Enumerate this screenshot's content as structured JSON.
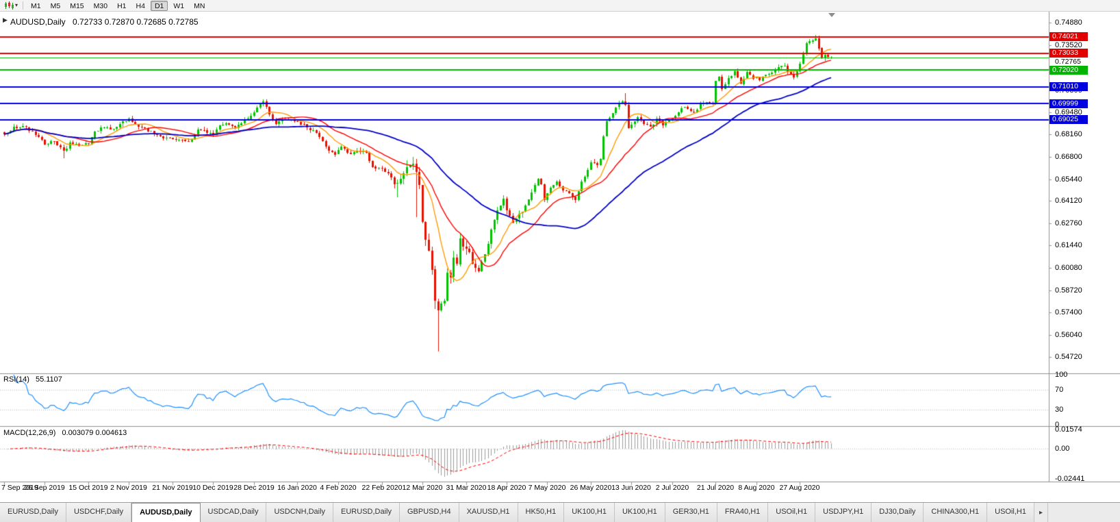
{
  "toolbar": {
    "timeframes": [
      "M1",
      "M5",
      "M15",
      "M30",
      "H1",
      "H4",
      "D1",
      "W1",
      "MN"
    ],
    "active_timeframe": "D1",
    "dropdown_caret": "▾"
  },
  "chart_header": {
    "symbol": "AUDUSD,Daily",
    "ohlc": "0.72733 0.72870 0.72685 0.72785",
    "one_click_glyph": "▶"
  },
  "chart_data": {
    "type": "candlestick",
    "symbol": "AUDUSD",
    "timeframe": "Daily",
    "current_ohlc": {
      "open": 0.72733,
      "high": 0.7287,
      "low": 0.72685,
      "close": 0.72785
    },
    "num_candles": 266,
    "candle_up_color": "#00C400",
    "candle_down_color": "#E81000",
    "close_anchors": [
      [
        0,
        0.6815
      ],
      [
        3,
        0.6855
      ],
      [
        6,
        0.6865
      ],
      [
        9,
        0.683
      ],
      [
        13,
        0.676
      ],
      [
        16,
        0.677
      ],
      [
        19,
        0.671
      ],
      [
        21,
        0.676
      ],
      [
        24,
        0.675
      ],
      [
        27,
        0.6755
      ],
      [
        29,
        0.683
      ],
      [
        32,
        0.686
      ],
      [
        35,
        0.6845
      ],
      [
        38,
        0.6885
      ],
      [
        40,
        0.691
      ],
      [
        43,
        0.686
      ],
      [
        46,
        0.684
      ],
      [
        49,
        0.681
      ],
      [
        52,
        0.679
      ],
      [
        56,
        0.6785
      ],
      [
        58,
        0.677
      ],
      [
        60,
        0.678
      ],
      [
        62,
        0.684
      ],
      [
        64,
        0.6835
      ],
      [
        67,
        0.681
      ],
      [
        69,
        0.6865
      ],
      [
        71,
        0.688
      ],
      [
        74,
        0.685
      ],
      [
        77,
        0.69
      ],
      [
        80,
        0.6945
      ],
      [
        82,
        0.7
      ],
      [
        83,
        0.7015
      ],
      [
        85,
        0.6935
      ],
      [
        87,
        0.6875
      ],
      [
        89,
        0.6905
      ],
      [
        92,
        0.69
      ],
      [
        94,
        0.689
      ],
      [
        96,
        0.687
      ],
      [
        98,
        0.6845
      ],
      [
        100,
        0.683
      ],
      [
        102,
        0.677
      ],
      [
        104,
        0.672
      ],
      [
        106,
        0.6695
      ],
      [
        108,
        0.674
      ],
      [
        111,
        0.669
      ],
      [
        113,
        0.672
      ],
      [
        116,
        0.67
      ],
      [
        118,
        0.662
      ],
      [
        121,
        0.66
      ],
      [
        123,
        0.658
      ],
      [
        125,
        0.653
      ],
      [
        126,
        0.6515
      ],
      [
        128,
        0.659
      ],
      [
        130,
        0.6635
      ],
      [
        131,
        0.664
      ],
      [
        132,
        0.658
      ],
      [
        133,
        0.65
      ],
      [
        134,
        0.628
      ],
      [
        135,
        0.6185
      ],
      [
        136,
        0.6115
      ],
      [
        137,
        0.599
      ],
      [
        138,
        0.5795
      ],
      [
        139,
        0.5745
      ],
      [
        140,
        0.58
      ],
      [
        141,
        0.5825
      ],
      [
        142,
        0.5965
      ],
      [
        143,
        0.5955
      ],
      [
        144,
        0.6065
      ],
      [
        145,
        0.6025
      ],
      [
        146,
        0.617
      ],
      [
        147,
        0.6135
      ],
      [
        148,
        0.613
      ],
      [
        150,
        0.605
      ],
      [
        152,
        0.599
      ],
      [
        154,
        0.609
      ],
      [
        156,
        0.6235
      ],
      [
        158,
        0.6345
      ],
      [
        160,
        0.643
      ],
      [
        161,
        0.636
      ],
      [
        163,
        0.628
      ],
      [
        165,
        0.633
      ],
      [
        167,
        0.638
      ],
      [
        169,
        0.6465
      ],
      [
        171,
        0.6545
      ],
      [
        172,
        0.6515
      ],
      [
        173,
        0.642
      ],
      [
        175,
        0.649
      ],
      [
        177,
        0.6525
      ],
      [
        179,
        0.648
      ],
      [
        181,
        0.6455
      ],
      [
        183,
        0.642
      ],
      [
        185,
        0.6525
      ],
      [
        187,
        0.66
      ],
      [
        188,
        0.665
      ],
      [
        190,
        0.6635
      ],
      [
        191,
        0.6665
      ],
      [
        192,
        0.68
      ],
      [
        193,
        0.6895
      ],
      [
        195,
        0.694
      ],
      [
        197,
        0.7
      ],
      [
        198,
        0.7015
      ],
      [
        199,
        0.6995
      ],
      [
        200,
        0.685
      ],
      [
        201,
        0.687
      ],
      [
        203,
        0.692
      ],
      [
        205,
        0.688
      ],
      [
        207,
        0.6855
      ],
      [
        209,
        0.6905
      ],
      [
        211,
        0.687
      ],
      [
        213,
        0.69
      ],
      [
        215,
        0.6925
      ],
      [
        217,
        0.6975
      ],
      [
        219,
        0.697
      ],
      [
        221,
        0.6945
      ],
      [
        223,
        0.6995
      ],
      [
        225,
        0.701
      ],
      [
        227,
        0.7
      ],
      [
        228,
        0.713
      ],
      [
        229,
        0.716
      ],
      [
        230,
        0.7095
      ],
      [
        232,
        0.715
      ],
      [
        234,
        0.719
      ],
      [
        236,
        0.712
      ],
      [
        238,
        0.719
      ],
      [
        240,
        0.7157
      ],
      [
        242,
        0.7145
      ],
      [
        244,
        0.7175
      ],
      [
        246,
        0.719
      ],
      [
        248,
        0.7225
      ],
      [
        250,
        0.7235
      ],
      [
        251,
        0.719
      ],
      [
        253,
        0.716
      ],
      [
        255,
        0.724
      ],
      [
        257,
        0.7365
      ],
      [
        258,
        0.7376
      ],
      [
        260,
        0.739
      ],
      [
        261,
        0.733
      ],
      [
        262,
        0.728
      ],
      [
        263,
        0.729
      ],
      [
        264,
        0.7273
      ],
      [
        265,
        0.72785
      ]
    ],
    "special_wicks": [
      {
        "index": 19,
        "low": 0.6671
      },
      {
        "index": 126,
        "low": 0.6434
      },
      {
        "index": 132,
        "low": 0.6313
      },
      {
        "index": 139,
        "low": 0.5508
      },
      {
        "index": 199,
        "high": 0.7064
      },
      {
        "index": 260,
        "high": 0.7414
      }
    ],
    "price_scale_labels": [
      "0.74880",
      "0.73520",
      "0.70800",
      "0.69480",
      "0.68160",
      "0.66800",
      "0.65440",
      "0.64120",
      "0.62760",
      "0.61440",
      "0.60080",
      "0.58720",
      "0.57400",
      "0.56040",
      "0.54720"
    ],
    "horizontal_lines": [
      {
        "price": 0.74021,
        "label": "0.74021",
        "color": "#E00000",
        "width": 2
      },
      {
        "price": 0.73033,
        "label": "0.73033",
        "color": "#E00000",
        "width": 2
      },
      {
        "price": 0.7202,
        "label": "0.72020",
        "color": "#00B400",
        "width": 2
      },
      {
        "price": 0.7101,
        "label": "0.71010",
        "color": "#0000E0",
        "width": 2
      },
      {
        "price": 0.69999,
        "label": "0.69999",
        "color": "#0000E0",
        "width": 2
      },
      {
        "price": 0.69025,
        "label": "0.69025",
        "color": "#0000E0",
        "width": 2
      }
    ],
    "bid_line": {
      "price": 0.72765,
      "label": "0.72765",
      "color": "#00B400",
      "width": 1
    },
    "moving_averages": [
      {
        "period": 10,
        "color": "#FF9A00",
        "width": 1.4
      },
      {
        "period": 21,
        "color": "#FF0000",
        "width": 1.4
      },
      {
        "period": 50,
        "color": "#0000C8",
        "width": 1.8
      }
    ],
    "x_axis": {
      "labels": [
        "7 Sep 2019",
        "26 Sep 2019",
        "15 Oct 2019",
        "2 Nov 2019",
        "21 Nov 2019",
        "10 Dec 2019",
        "28 Dec 2019",
        "16 Jan 2020",
        "4 Feb 2020",
        "22 Feb 2020",
        "12 Mar 2020",
        "31 Mar 2020",
        "18 Apr 2020",
        "7 May 2020",
        "26 May 2020",
        "13 Jun 2020",
        "2 Jul 2020",
        "21 Jul 2020",
        "8 Aug 2020",
        "27 Aug 2020"
      ],
      "label_candle_indices": [
        0,
        13,
        27,
        40,
        54,
        67,
        80,
        94,
        107,
        121,
        134,
        148,
        161,
        174,
        188,
        201,
        214,
        228,
        241,
        255
      ]
    },
    "rsi": {
      "title": "RSI(14)",
      "value": "55.1107",
      "period": 14,
      "color": "#1E90FF",
      "levels": [
        "100",
        "70",
        "30",
        "0"
      ],
      "level_lines": [
        70,
        30
      ]
    },
    "macd": {
      "title": "MACD(12,26,9)",
      "values": "0.003079 0.004613",
      "fast": 12,
      "slow": 26,
      "signal": 9,
      "histogram_color": "#9A9A9A",
      "signal_color": "#FF0000",
      "scale_labels": [
        "0.01574",
        "0.00",
        "-0.02441"
      ],
      "scale_max": 0.01574,
      "scale_min": -0.02441
    }
  },
  "tabs": {
    "items": [
      "EURUSD,Daily",
      "USDCHF,Daily",
      "AUDUSD,Daily",
      "USDCAD,Daily",
      "USDCNH,Daily",
      "EURUSD,Daily",
      "GBPUSD,H4",
      "XAUUSD,H1",
      "HK50,H1",
      "UK100,H1",
      "UK100,H1",
      "GER30,H1",
      "FRA40,H1",
      "USOil,H1",
      "USDJPY,H1",
      "DJ30,Daily",
      "CHINA300,H1",
      "USOil,H1"
    ],
    "active_index": 2,
    "scroll_right_glyph": "▸"
  }
}
